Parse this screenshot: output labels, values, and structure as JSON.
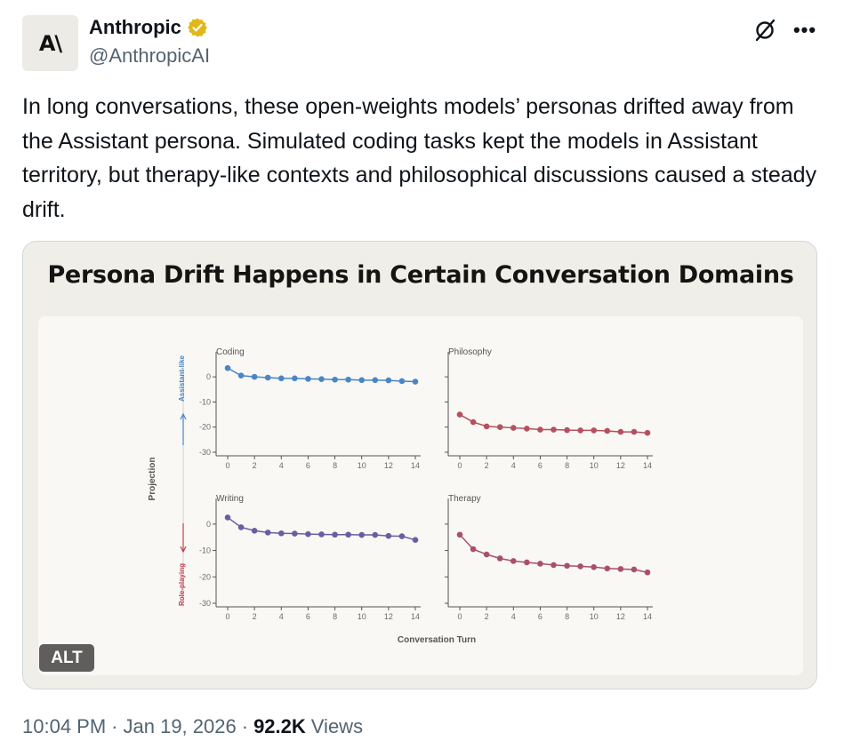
{
  "author": {
    "name": "Anthropic",
    "handle": "@AnthropicAI",
    "avatar_text": "A\\",
    "verified_icon": "verified-badge-gold",
    "badge_color": "#e2b719"
  },
  "actions": {
    "grok_icon": "grok-icon",
    "more_icon": "more-icon",
    "more_glyph": "•••"
  },
  "tweet": {
    "text": "In long conversations, these open-weights models’ personas drifted away from the Assistant persona. Simulated coding tasks kept the models in Assistant territory, but therapy-like contexts and philosophical discussions caused a steady drift."
  },
  "media": {
    "alt_label": "ALT"
  },
  "chart_data": {
    "type": "line",
    "title": "Persona Drift Happens in Certain Conversation Domains",
    "ylabel": "Projection",
    "y_top_label": "Assistant-like",
    "y_bottom_label": "Role-playing",
    "xlabel": "Conversation Turn",
    "xlim": [
      0,
      14
    ],
    "ylim": [
      -30,
      5
    ],
    "x_ticks": [
      0,
      2,
      4,
      6,
      8,
      10,
      12,
      14
    ],
    "y_ticks": [
      0,
      -10,
      -20,
      -30
    ],
    "x": [
      0,
      1,
      2,
      3,
      4,
      5,
      6,
      7,
      8,
      9,
      10,
      11,
      12,
      13,
      14
    ],
    "panels": [
      {
        "name": "Coding",
        "color": "#4a86c6",
        "values": [
          3.5,
          0.5,
          0,
          -0.3,
          -0.6,
          -0.6,
          -0.8,
          -0.9,
          -1.1,
          -1.1,
          -1.3,
          -1.3,
          -1.4,
          -1.7,
          -1.9
        ]
      },
      {
        "name": "Philosophy",
        "color": "#b5505f",
        "values": [
          -15,
          -18,
          -19.7,
          -20,
          -20.3,
          -20.6,
          -21,
          -21,
          -21.2,
          -21.3,
          -21.3,
          -21.5,
          -21.9,
          -21.9,
          -22.3
        ]
      },
      {
        "name": "Writing",
        "color": "#6a5ea0",
        "values": [
          2.5,
          -1.2,
          -2.5,
          -3.2,
          -3.5,
          -3.6,
          -3.8,
          -3.9,
          -4.0,
          -4.0,
          -4.1,
          -4.1,
          -4.5,
          -4.6,
          -6.0
        ]
      },
      {
        "name": "Therapy",
        "color": "#a8506e",
        "values": [
          -4,
          -9.5,
          -11.5,
          -13,
          -14,
          -14.5,
          -15,
          -15.5,
          -15.8,
          -16,
          -16.3,
          -16.8,
          -17,
          -17.2,
          -18.3
        ]
      }
    ]
  },
  "footer": {
    "time": "10:04 PM",
    "sep1": "·",
    "date": "Jan 19, 2026",
    "sep2": "·",
    "views_count": "92.2K",
    "views_label": "Views"
  }
}
